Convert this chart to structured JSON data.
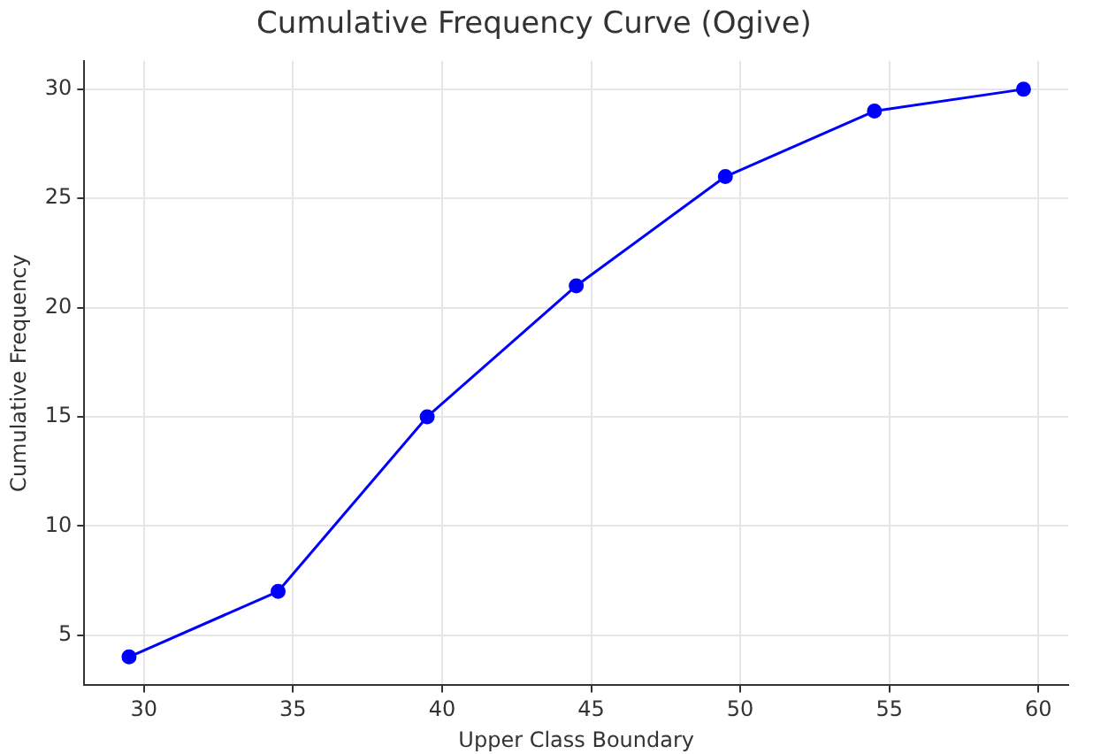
{
  "chart_data": {
    "type": "line",
    "title": "Cumulative Frequency Curve (Ogive)",
    "xlabel": "Upper Class Boundary",
    "ylabel": "Cumulative Frequency",
    "x": [
      29.5,
      34.5,
      39.5,
      44.5,
      49.5,
      54.5,
      59.5
    ],
    "series": [
      {
        "color": "#0000ff",
        "values": [
          4,
          7,
          15,
          21,
          26,
          29,
          30
        ]
      }
    ],
    "xlim": [
      28,
      61
    ],
    "xticks": [
      30,
      35,
      40,
      45,
      50,
      55,
      60
    ],
    "ylim": [
      2.7,
      31.3
    ],
    "yticks": [
      5,
      10,
      15,
      20,
      25,
      30
    ],
    "grid": true,
    "marker": "circle",
    "line_style": "solid"
  }
}
